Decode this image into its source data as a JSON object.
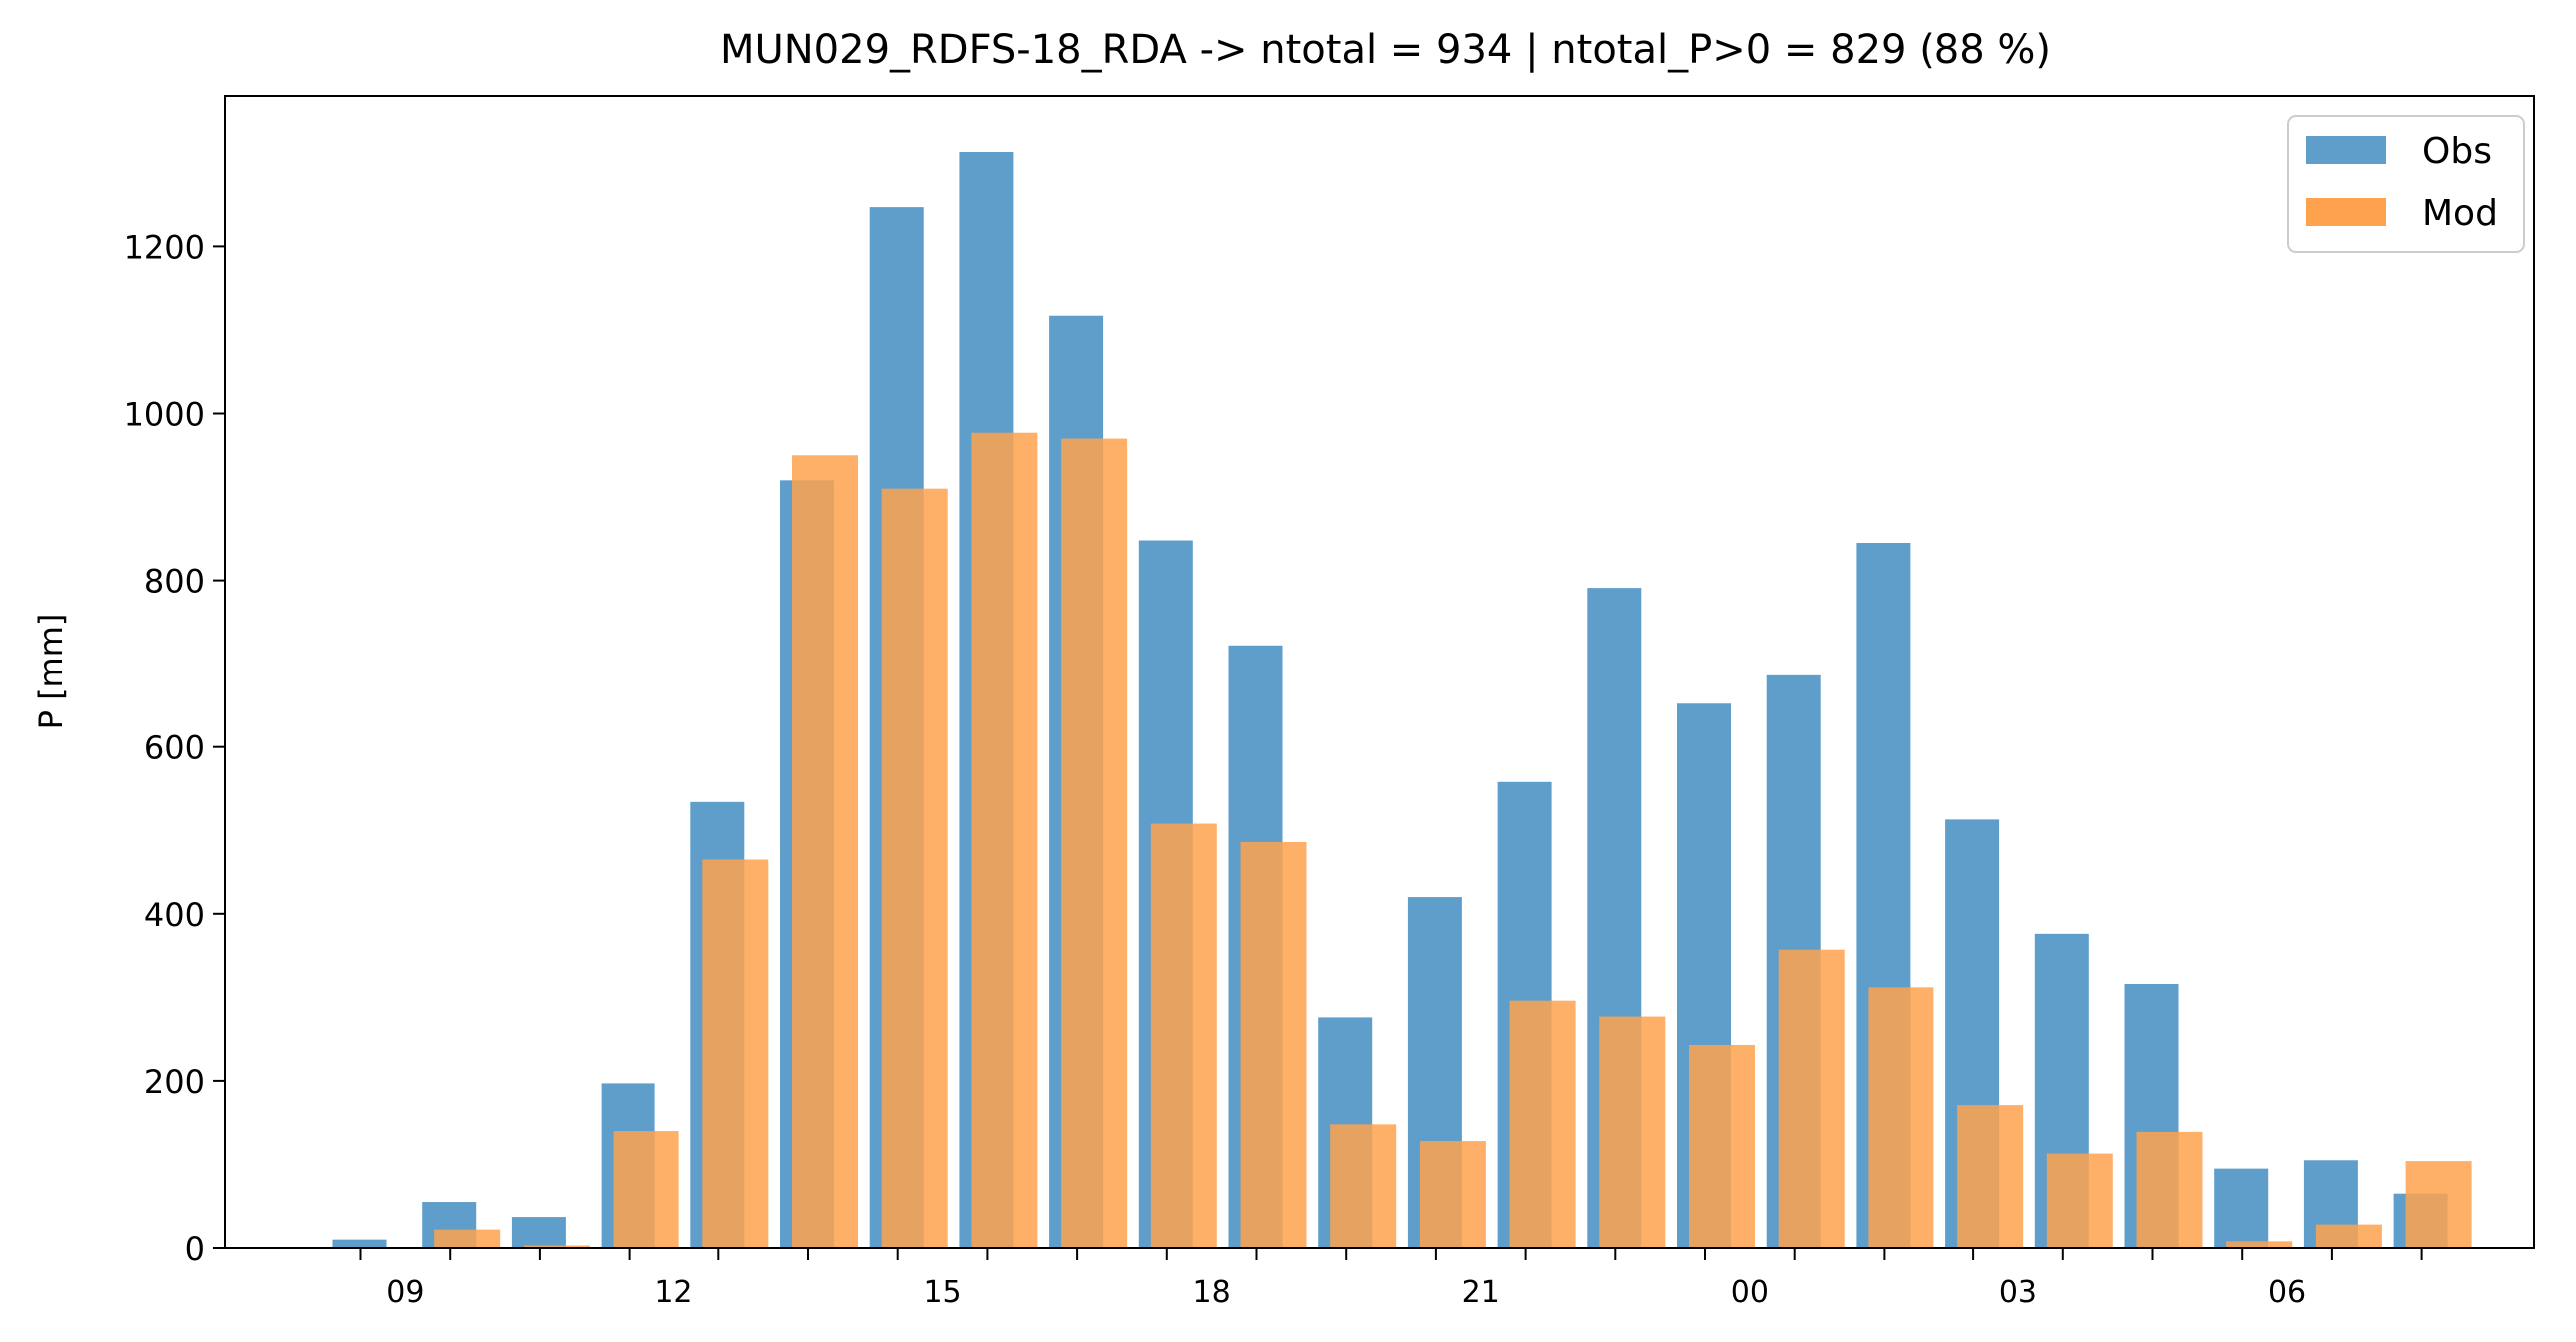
{
  "chart_data": {
    "type": "bar",
    "title": "MUN029_RDFS-18_RDA -> ntotal = 934 | ntotal_P>0 = 829 (88 %)",
    "xlabel": "",
    "ylabel": "P [mm]",
    "ylim": [
      0,
      1380
    ],
    "yticks": [
      0,
      200,
      400,
      600,
      800,
      1000,
      1200
    ],
    "hours": [
      8,
      9,
      10,
      11,
      12,
      13,
      14,
      15,
      16,
      17,
      18,
      19,
      20,
      21,
      22,
      23,
      0,
      1,
      2,
      3,
      4,
      5,
      6,
      7
    ],
    "xtick_labels": [
      {
        "index": 1,
        "label": "09"
      },
      {
        "index": 4,
        "label": "12"
      },
      {
        "index": 7,
        "label": "15"
      },
      {
        "index": 10,
        "label": "18"
      },
      {
        "index": 13,
        "label": "21"
      },
      {
        "index": 16,
        "label": "00"
      },
      {
        "index": 19,
        "label": "03"
      },
      {
        "index": 22,
        "label": "06"
      }
    ],
    "series": [
      {
        "name": "Obs",
        "color": "#5f9ecb",
        "values": [
          10,
          55,
          37,
          197,
          534,
          920,
          1247,
          1313,
          1117,
          848,
          722,
          276,
          420,
          558,
          791,
          652,
          686,
          845,
          513,
          376,
          316,
          95,
          105,
          65
        ]
      },
      {
        "name": "Mod",
        "color": "#fea24d",
        "values": [
          0,
          22,
          3,
          140,
          465,
          950,
          910,
          977,
          970,
          508,
          486,
          148,
          128,
          296,
          277,
          243,
          357,
          312,
          171,
          113,
          139,
          8,
          28,
          104
        ]
      }
    ],
    "overlap_color": "#cf8746",
    "legend": {
      "position": "top-right",
      "entries": [
        "Obs",
        "Mod"
      ]
    },
    "grid": false
  }
}
